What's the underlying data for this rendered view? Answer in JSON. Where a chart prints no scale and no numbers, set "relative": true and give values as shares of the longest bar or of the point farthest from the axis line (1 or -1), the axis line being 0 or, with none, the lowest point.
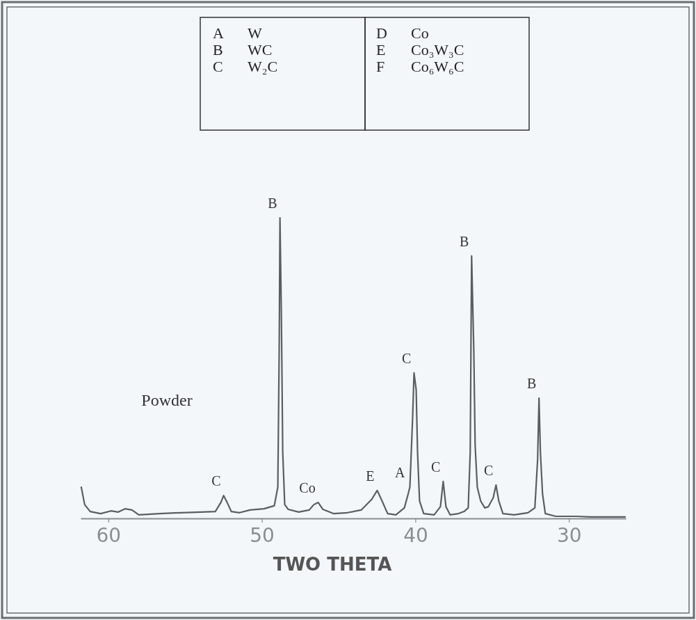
{
  "chart_data": {
    "type": "line",
    "relative": true,
    "xlabel": "TWO THETA",
    "xlim": [
      61.8,
      26.3
    ],
    "xticks": [
      60,
      50,
      40,
      30
    ],
    "x": [
      61.76,
      61.54,
      61.18,
      60.5,
      59.82,
      59.37,
      58.91,
      58.46,
      58.01,
      56.65,
      55.29,
      53.94,
      53.03,
      52.67,
      52.49,
      52.26,
      51.99,
      51.45,
      50.77,
      49.86,
      49.19,
      48.96,
      48.87,
      48.82,
      48.73,
      48.64,
      48.51,
      48.28,
      47.6,
      46.92,
      46.61,
      46.33,
      46.02,
      45.34,
      44.43,
      43.53,
      42.85,
      42.49,
      42.17,
      41.81,
      41.27,
      40.72,
      40.5,
      40.36,
      40.18,
      40.09,
      39.95,
      39.86,
      39.73,
      39.46,
      38.78,
      38.37,
      38.19,
      38.01,
      37.74,
      37.19,
      36.83,
      36.56,
      36.43,
      36.34,
      36.2,
      36.11,
      35.97,
      35.75,
      35.48,
      35.25,
      34.93,
      34.75,
      34.57,
      34.3,
      33.57,
      32.67,
      32.22,
      32.04,
      31.95,
      31.86,
      31.72,
      31.54,
      30.86,
      29.5,
      28.6,
      26.34
    ],
    "series": [
      {
        "color": "#5a5e62",
        "values": [
          0.104,
          0.046,
          0.023,
          0.016,
          0.025,
          0.021,
          0.032,
          0.028,
          0.012,
          0.016,
          0.019,
          0.021,
          0.023,
          0.053,
          0.076,
          0.053,
          0.023,
          0.019,
          0.028,
          0.032,
          0.042,
          0.104,
          0.567,
          1,
          0.683,
          0.22,
          0.046,
          0.03,
          0.021,
          0.028,
          0.046,
          0.053,
          0.03,
          0.016,
          0.019,
          0.028,
          0.063,
          0.093,
          0.058,
          0.016,
          0.012,
          0.035,
          0.076,
          0.104,
          0.336,
          0.484,
          0.428,
          0.22,
          0.058,
          0.016,
          0.012,
          0.039,
          0.123,
          0.039,
          0.012,
          0.016,
          0.023,
          0.035,
          0.22,
          0.873,
          0.567,
          0.243,
          0.104,
          0.058,
          0.035,
          0.039,
          0.069,
          0.111,
          0.058,
          0.016,
          0.012,
          0.019,
          0.035,
          0.197,
          0.4,
          0.22,
          0.081,
          0.016,
          0.007,
          0.007,
          0.005,
          0.005
        ]
      }
    ],
    "marker": "none",
    "line_style": "solid",
    "grid": false,
    "annotations": [
      "Powder",
      "A",
      "W",
      "B",
      "WC",
      "C",
      "W₂C",
      "D",
      "Co",
      "E",
      "Co₃W₃C",
      "F",
      "Co₆W₆C",
      {
        "text": "C",
        "x": 52.49,
        "y": 0.076
      },
      {
        "text": "B",
        "x": 48.82,
        "y": 1
      },
      {
        "text": "Co",
        "x": 46.33,
        "y": 0.053
      },
      {
        "text": "E",
        "x": 42.49,
        "y": 0.093
      },
      {
        "text": "A",
        "x": 40.5,
        "y": 0.104
      },
      {
        "text": "C",
        "x": 40.09,
        "y": 0.484
      },
      {
        "text": "C",
        "x": 38.19,
        "y": 0.123
      },
      {
        "text": "B",
        "x": 36.34,
        "y": 0.873
      },
      {
        "text": "C",
        "x": 34.75,
        "y": 0.111
      },
      {
        "text": "B",
        "x": 31.95,
        "y": 0.4
      }
    ]
  }
}
